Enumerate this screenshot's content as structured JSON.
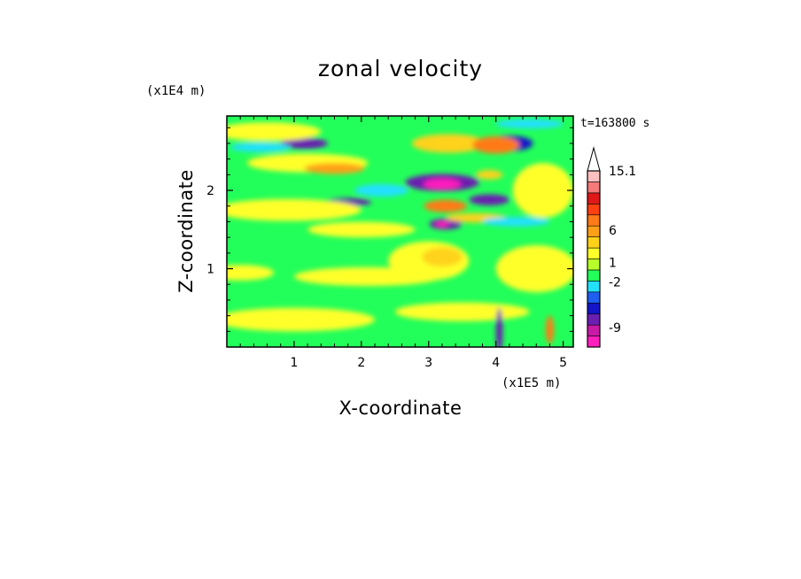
{
  "chart_data": {
    "type": "heatmap",
    "title": "zonal velocity",
    "xlabel": "X-coordinate",
    "ylabel": "Z-coordinate",
    "x_unit": "(x1E5 m)",
    "y_unit": "(x1E4 m)",
    "time_label": "t=163800 s",
    "xlim": [
      0,
      5.15
    ],
    "ylim": [
      0,
      2.95
    ],
    "x_ticks": [
      1,
      2,
      3,
      4,
      5
    ],
    "y_ticks": [
      1,
      2
    ],
    "x_tick_labels": [
      "1",
      "2",
      "3",
      "4",
      "5"
    ],
    "y_tick_labels": [
      "1",
      "2"
    ],
    "colorbar": {
      "labels": [
        {
          "text": "15.1",
          "value": 15.1
        },
        {
          "text": "6",
          "value": 6
        },
        {
          "text": "1",
          "value": 1
        },
        {
          "text": "-2",
          "value": -2
        },
        {
          "text": "-9",
          "value": -9
        }
      ],
      "colors": [
        "#ff1fbd",
        "#c81aa6",
        "#6a1fb0",
        "#1414c8",
        "#1e5ef0",
        "#22e0ff",
        "#22ff5a",
        "#b8ff2a",
        "#ffff2a",
        "#ffd21a",
        "#ffa018",
        "#ff7a18",
        "#ff4010",
        "#e01818",
        "#f57a7a",
        "#ffc0c0"
      ],
      "extend": "max"
    },
    "features": [
      {
        "x": 3.2,
        "z": 2.1,
        "rx": 0.55,
        "rz": 0.11,
        "value": -9
      },
      {
        "x": 3.2,
        "z": 2.08,
        "rx": 0.28,
        "rz": 0.07,
        "value": -12
      },
      {
        "x": 3.25,
        "z": 1.57,
        "rx": 0.24,
        "rz": 0.07,
        "value": -8
      },
      {
        "x": 3.2,
        "z": 1.57,
        "rx": 0.1,
        "rz": 0.04,
        "value": -12
      },
      {
        "x": 3.9,
        "z": 1.88,
        "rx": 0.3,
        "rz": 0.07,
        "value": -8
      },
      {
        "x": 1.15,
        "z": 2.6,
        "rx": 0.35,
        "rz": 0.07,
        "value": -8
      },
      {
        "x": 1.8,
        "z": 1.85,
        "rx": 0.35,
        "rz": 0.05,
        "value": -8
      },
      {
        "x": 4.2,
        "z": 2.6,
        "rx": 0.35,
        "rz": 0.1,
        "value": -4
      },
      {
        "x": 3.3,
        "z": 2.6,
        "rx": 0.55,
        "rz": 0.12,
        "value": 3
      },
      {
        "x": 4.0,
        "z": 2.58,
        "rx": 0.35,
        "rz": 0.11,
        "value": 6
      },
      {
        "x": 3.25,
        "z": 1.8,
        "rx": 0.32,
        "rz": 0.08,
        "value": 6
      },
      {
        "x": 3.7,
        "z": 1.65,
        "rx": 0.45,
        "rz": 0.06,
        "value": 3
      },
      {
        "x": 3.9,
        "z": 2.2,
        "rx": 0.2,
        "rz": 0.06,
        "value": 3
      },
      {
        "x": 1.2,
        "z": 2.35,
        "rx": 0.9,
        "rz": 0.12,
        "value": 2
      },
      {
        "x": 1.6,
        "z": 2.28,
        "rx": 0.45,
        "rz": 0.07,
        "value": 5
      },
      {
        "x": 3.0,
        "z": 1.1,
        "rx": 0.6,
        "rz": 0.25,
        "value": 2
      },
      {
        "x": 3.2,
        "z": 1.15,
        "rx": 0.3,
        "rz": 0.12,
        "value": 3
      },
      {
        "x": 0.9,
        "z": 1.75,
        "rx": 1.1,
        "rz": 0.14,
        "value": 2
      },
      {
        "x": 2.0,
        "z": 1.5,
        "rx": 0.8,
        "rz": 0.1,
        "value": 2
      },
      {
        "x": 0.2,
        "z": 0.95,
        "rx": 0.5,
        "rz": 0.1,
        "value": 2
      },
      {
        "x": 2.1,
        "z": 0.9,
        "rx": 1.1,
        "rz": 0.12,
        "value": 1.5
      },
      {
        "x": 1.0,
        "z": 0.35,
        "rx": 1.2,
        "rz": 0.15,
        "value": 1.5
      },
      {
        "x": 3.5,
        "z": 0.45,
        "rx": 1.0,
        "rz": 0.12,
        "value": 1.5
      },
      {
        "x": 4.6,
        "z": 1.0,
        "rx": 0.6,
        "rz": 0.3,
        "value": 1.5
      },
      {
        "x": 4.7,
        "z": 2.0,
        "rx": 0.45,
        "rz": 0.35,
        "value": 1.5
      },
      {
        "x": 0.6,
        "z": 2.75,
        "rx": 0.8,
        "rz": 0.12,
        "value": 1.5
      },
      {
        "x": 2.3,
        "z": 2.0,
        "rx": 0.4,
        "rz": 0.08,
        "value": -1
      },
      {
        "x": 4.3,
        "z": 1.6,
        "rx": 0.5,
        "rz": 0.06,
        "value": -1
      },
      {
        "x": 0.5,
        "z": 2.55,
        "rx": 0.45,
        "rz": 0.06,
        "value": -1
      },
      {
        "x": 4.5,
        "z": 2.85,
        "rx": 0.5,
        "rz": 0.06,
        "value": -1
      },
      {
        "x": 4.05,
        "z": 0.2,
        "rx": 0.05,
        "rz": 0.3,
        "value": -9
      },
      {
        "x": 4.8,
        "z": 0.22,
        "rx": 0.06,
        "rz": 0.18,
        "value": 6
      }
    ]
  }
}
